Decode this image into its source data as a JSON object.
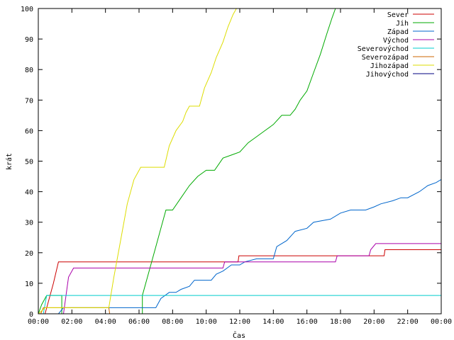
{
  "chart_data": {
    "type": "line",
    "xlabel": "Čas",
    "ylabel": "krát",
    "xlim": [
      0,
      24
    ],
    "ylim": [
      0,
      100
    ],
    "x_ticks": [
      {
        "v": 0,
        "label": "00:00"
      },
      {
        "v": 2,
        "label": "02:00"
      },
      {
        "v": 4,
        "label": "04:00"
      },
      {
        "v": 6,
        "label": "06:00"
      },
      {
        "v": 8,
        "label": "08:00"
      },
      {
        "v": 10,
        "label": "10:00"
      },
      {
        "v": 12,
        "label": "12:00"
      },
      {
        "v": 14,
        "label": "14:00"
      },
      {
        "v": 16,
        "label": "16:00"
      },
      {
        "v": 18,
        "label": "18:00"
      },
      {
        "v": 20,
        "label": "20:00"
      },
      {
        "v": 22,
        "label": "22:00"
      },
      {
        "v": 24,
        "label": "00:00"
      }
    ],
    "y_ticks": [
      0,
      10,
      20,
      30,
      40,
      50,
      60,
      70,
      80,
      90,
      100
    ],
    "grid": false,
    "legend_position": "top-right",
    "series": [
      {
        "name": "Sever",
        "color": "#cc0000",
        "points": [
          [
            0,
            0
          ],
          [
            0.4,
            0
          ],
          [
            0.9,
            10
          ],
          [
            1.2,
            17
          ],
          [
            11.9,
            17
          ],
          [
            11.95,
            19
          ],
          [
            20.6,
            19
          ],
          [
            20.65,
            21
          ],
          [
            24,
            21
          ]
        ]
      },
      {
        "name": "Jih",
        "color": "#00aa00",
        "points": [
          [
            0,
            0
          ],
          [
            0.2,
            3
          ],
          [
            0.5,
            6
          ],
          [
            1.4,
            6
          ],
          [
            1.4,
            0
          ],
          [
            6.2,
            0
          ],
          [
            6.2,
            6
          ],
          [
            6.6,
            14
          ],
          [
            7.0,
            22
          ],
          [
            7.3,
            28
          ],
          [
            7.6,
            34
          ],
          [
            8.0,
            34
          ],
          [
            8.5,
            38
          ],
          [
            9.0,
            42
          ],
          [
            9.5,
            45
          ],
          [
            10.0,
            47
          ],
          [
            10.5,
            47
          ],
          [
            11.0,
            51
          ],
          [
            11.5,
            52
          ],
          [
            12.0,
            53
          ],
          [
            12.5,
            56
          ],
          [
            13.0,
            58
          ],
          [
            13.5,
            60
          ],
          [
            14.0,
            62
          ],
          [
            14.5,
            65
          ],
          [
            15.0,
            65
          ],
          [
            15.3,
            67
          ],
          [
            15.6,
            70
          ],
          [
            16.0,
            73
          ],
          [
            16.4,
            79
          ],
          [
            16.8,
            85
          ],
          [
            17.2,
            92
          ],
          [
            17.5,
            97
          ],
          [
            17.7,
            100
          ]
        ]
      },
      {
        "name": "Západ",
        "color": "#0066cc",
        "points": [
          [
            0,
            0
          ],
          [
            1.2,
            0
          ],
          [
            1.5,
            2
          ],
          [
            7.0,
            2
          ],
          [
            7.3,
            5
          ],
          [
            7.8,
            7
          ],
          [
            8.2,
            7
          ],
          [
            8.5,
            8
          ],
          [
            9.0,
            9
          ],
          [
            9.3,
            11
          ],
          [
            10.3,
            11
          ],
          [
            10.6,
            13
          ],
          [
            11.0,
            14
          ],
          [
            11.5,
            16
          ],
          [
            12.0,
            16
          ],
          [
            12.3,
            17
          ],
          [
            13.0,
            18
          ],
          [
            14.0,
            18
          ],
          [
            14.2,
            22
          ],
          [
            14.8,
            24
          ],
          [
            15.3,
            27
          ],
          [
            16.0,
            28
          ],
          [
            16.4,
            30
          ],
          [
            17.4,
            31
          ],
          [
            18.0,
            33
          ],
          [
            18.6,
            34
          ],
          [
            19.5,
            34
          ],
          [
            20.0,
            35
          ],
          [
            20.4,
            36
          ],
          [
            21.1,
            37
          ],
          [
            21.6,
            38
          ],
          [
            22.0,
            38
          ],
          [
            22.7,
            40
          ],
          [
            23.2,
            42
          ],
          [
            23.7,
            43
          ],
          [
            24.0,
            44
          ]
        ]
      },
      {
        "name": "Východ",
        "color": "#aa00aa",
        "points": [
          [
            0,
            0
          ],
          [
            1.5,
            0
          ],
          [
            1.8,
            12
          ],
          [
            2.1,
            15
          ],
          [
            11.0,
            15
          ],
          [
            11.1,
            17
          ],
          [
            17.7,
            17
          ],
          [
            17.8,
            19
          ],
          [
            19.7,
            19
          ],
          [
            19.8,
            21
          ],
          [
            20.1,
            23
          ],
          [
            24.0,
            23
          ]
        ]
      },
      {
        "name": "Severovýchod",
        "color": "#00cccc",
        "points": [
          [
            0,
            0
          ],
          [
            0.3,
            0
          ],
          [
            0.5,
            6
          ],
          [
            24.0,
            6
          ]
        ]
      },
      {
        "name": "Severozápad",
        "color": "#cc6600",
        "points": [
          [
            0,
            0
          ],
          [
            0.15,
            0
          ],
          [
            0.3,
            2
          ],
          [
            4.2,
            2
          ],
          [
            4.25,
            0
          ],
          [
            24.0,
            0
          ]
        ]
      },
      {
        "name": "Jihozápad",
        "color": "#dddd00",
        "points": [
          [
            0,
            0
          ],
          [
            0.4,
            2
          ],
          [
            4.2,
            2
          ],
          [
            4.5,
            12
          ],
          [
            4.9,
            24
          ],
          [
            5.3,
            36
          ],
          [
            5.7,
            44
          ],
          [
            6.1,
            48
          ],
          [
            7.5,
            48
          ],
          [
            7.8,
            55
          ],
          [
            8.2,
            60
          ],
          [
            8.6,
            63
          ],
          [
            8.8,
            66
          ],
          [
            9.0,
            68
          ],
          [
            9.6,
            68
          ],
          [
            9.9,
            74
          ],
          [
            10.3,
            79
          ],
          [
            10.6,
            84
          ],
          [
            11.0,
            89
          ],
          [
            11.3,
            94
          ],
          [
            11.6,
            98
          ],
          [
            11.8,
            100
          ]
        ]
      },
      {
        "name": "Jihovýchod",
        "color": "#000080",
        "points": []
      }
    ]
  }
}
